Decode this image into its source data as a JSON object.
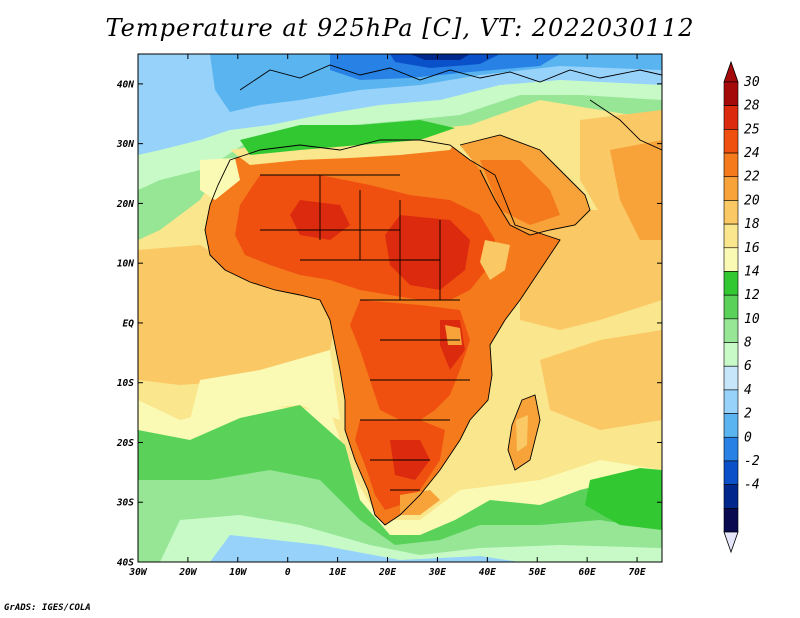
{
  "title": "Temperature at 925hPa [C], VT: 2022030112",
  "credit": "GrADS: IGES/COLA",
  "map": {
    "lon_range": [
      -30,
      75
    ],
    "lat_range": [
      -40,
      45
    ],
    "lon_ticks": [
      {
        "value": -30,
        "label": "30W"
      },
      {
        "value": -20,
        "label": "20W"
      },
      {
        "value": -10,
        "label": "10W"
      },
      {
        "value": 0,
        "label": "0"
      },
      {
        "value": 10,
        "label": "10E"
      },
      {
        "value": 20,
        "label": "20E"
      },
      {
        "value": 30,
        "label": "30E"
      },
      {
        "value": 40,
        "label": "40E"
      },
      {
        "value": 50,
        "label": "50E"
      },
      {
        "value": 60,
        "label": "60E"
      },
      {
        "value": 70,
        "label": "70E"
      }
    ],
    "lat_ticks": [
      {
        "value": 40,
        "label": "40N"
      },
      {
        "value": 30,
        "label": "30N"
      },
      {
        "value": 20,
        "label": "20N"
      },
      {
        "value": 10,
        "label": "10N"
      },
      {
        "value": 0,
        "label": "EQ"
      },
      {
        "value": -10,
        "label": "10S"
      },
      {
        "value": -20,
        "label": "20S"
      },
      {
        "value": -30,
        "label": "30S"
      },
      {
        "value": -40,
        "label": "40S"
      }
    ]
  },
  "colorbar": {
    "levels": [
      "30",
      "28",
      "25",
      "24",
      "22",
      "20",
      "18",
      "16",
      "14",
      "12",
      "10",
      "8",
      "6",
      "4",
      "2",
      "0",
      "-2",
      "-4"
    ],
    "colors": [
      "#a50a0a",
      "#dc2a0e",
      "#f0500f",
      "#f57a1c",
      "#f8a23a",
      "#fac864",
      "#fae68c",
      "#fafab4",
      "#32c832",
      "#5ad25a",
      "#96e696",
      "#c8fac8",
      "#c8e6fa",
      "#96d2fa",
      "#5ab4f0",
      "#2882e6",
      "#0a50c8",
      "#00288c",
      "#0a0a50"
    ],
    "top_arrow_color": "#a50a0a",
    "bottom_arrow_color": "#e6e6fa"
  }
}
